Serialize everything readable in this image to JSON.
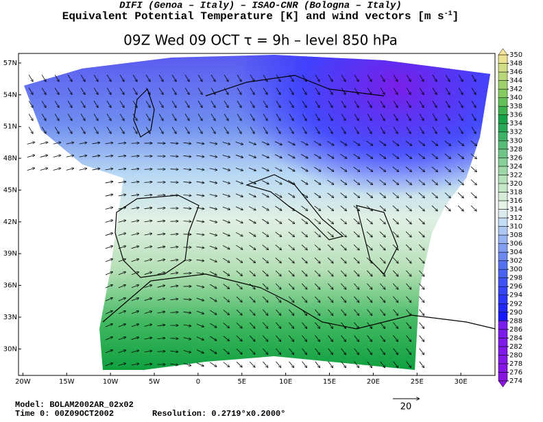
{
  "header": {
    "line1": "DIFI (Genoa – Italy)  –  ISAO-CNR (Bologna – Italy)",
    "line2": "Equivalent Potential Temperature [K] and wind vectors [m s",
    "line2_sup": "-1",
    "line2_end": "]",
    "line3": "09Z Wed 09 OCT  τ = 9h  –  level 850 hPa"
  },
  "map": {
    "xlim": [
      -20.5,
      33.9
    ],
    "ylim": [
      27.5,
      57.9
    ],
    "xticks": [
      {
        "value": -20,
        "label": "20W"
      },
      {
        "value": -15,
        "label": "15W"
      },
      {
        "value": -10,
        "label": "10W"
      },
      {
        "value": -5,
        "label": "5W"
      },
      0,
      {
        "value": 5,
        "label": "5E"
      },
      {
        "value": 10,
        "label": "10E"
      },
      {
        "value": 15,
        "label": "15E"
      },
      {
        "value": 20,
        "label": "20E"
      },
      {
        "value": 25,
        "label": "25E"
      },
      {
        "value": 30,
        "label": "30E"
      }
    ],
    "yticks": [
      {
        "value": 30,
        "label": "30N"
      },
      {
        "value": 33,
        "label": "33N"
      },
      {
        "value": 36,
        "label": "36N"
      },
      {
        "value": 39,
        "label": "39N"
      },
      {
        "value": 42,
        "label": "42N"
      },
      {
        "value": 45,
        "label": "45N"
      },
      {
        "value": 48,
        "label": "48N"
      },
      {
        "value": 51,
        "label": "51N"
      },
      {
        "value": 54,
        "label": "54N"
      },
      {
        "value": 57,
        "label": "57N"
      }
    ]
  },
  "colorbar": {
    "levels": [
      274,
      276,
      278,
      280,
      282,
      284,
      286,
      288,
      290,
      292,
      294,
      296,
      298,
      300,
      302,
      304,
      306,
      308,
      310,
      312,
      314,
      316,
      318,
      320,
      322,
      324,
      326,
      328,
      330,
      332,
      334,
      336,
      338,
      340,
      342,
      344,
      346,
      348,
      350
    ]
  },
  "footer": {
    "model": "Model: BOLAM2002AR_02x02",
    "time": "Time 0: 00Z09OCT2002",
    "resolution": "Resolution: 0.2719°x0.2000°",
    "reference_arrow": "20"
  }
}
